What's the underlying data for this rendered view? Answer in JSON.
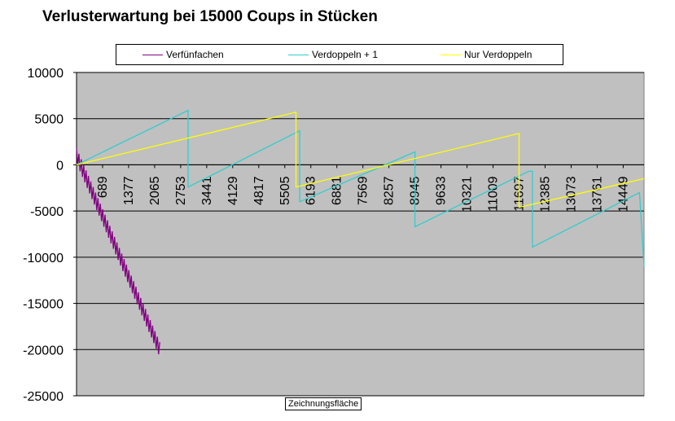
{
  "title": "Verlusterwartung bei 15000 Coups in Stücken",
  "tooltip": "Zeichnungsfläche",
  "legend": [
    {
      "label": "Verfünfachen",
      "color": "#800080"
    },
    {
      "label": "Verdoppeln + 1",
      "color": "#33CCCC"
    },
    {
      "label": "Nur Verdoppeln",
      "color": "#FFFF00"
    }
  ],
  "chart_data": {
    "type": "line",
    "title": "Verlusterwartung bei 15000 Coups in Stücken",
    "ylim": [
      -25000,
      10000
    ],
    "xlim": [
      1,
      15000
    ],
    "yticks": [
      "10000",
      "5000",
      "0",
      "-5000",
      "-10000",
      "-15000",
      "-20000",
      "-25000"
    ],
    "ytick_values": [
      10000,
      5000,
      0,
      -5000,
      -10000,
      -15000,
      -20000,
      -25000
    ],
    "xticks": [
      "689",
      "1377",
      "2065",
      "2753",
      "3441",
      "4129",
      "4817",
      "5505",
      "6193",
      "6881",
      "7569",
      "8257",
      "8945",
      "9633",
      "10321",
      "11009",
      "11697",
      "12385",
      "13073",
      "13761",
      "14449"
    ],
    "xtick_values": [
      689,
      1377,
      2065,
      2753,
      3441,
      4129,
      4817,
      5505,
      6193,
      6881,
      7569,
      8257,
      8945,
      9633,
      10321,
      11009,
      11697,
      12385,
      13073,
      13761,
      14449
    ],
    "plot_background": "#C0C0C0",
    "grid": "horizontal",
    "series": [
      {
        "name": "Verfünfachen",
        "color": "#800080",
        "x": [
          1,
          2200
        ],
        "y": [
          1000,
          -20000
        ],
        "oscillation_amplitude": 1600
      },
      {
        "name": "Verdoppeln + 1",
        "color": "#33CCCC",
        "x": [
          1,
          2950,
          2950,
          5900,
          5900,
          8945,
          8945,
          11950,
          11950,
          12050,
          12050,
          14880,
          14880,
          15000
        ],
        "y": [
          0,
          5900,
          -2400,
          3700,
          -4000,
          1400,
          -6700,
          -700,
          -700,
          -700,
          -8900,
          -3000,
          -3000,
          -11000
        ]
      },
      {
        "name": "Nur Verdoppeln",
        "color": "#FFFF00",
        "x": [
          1,
          5800,
          5800,
          11697,
          11697,
          15000
        ],
        "y": [
          0,
          5700,
          -2400,
          3400,
          -4600,
          -1500
        ]
      }
    ]
  }
}
